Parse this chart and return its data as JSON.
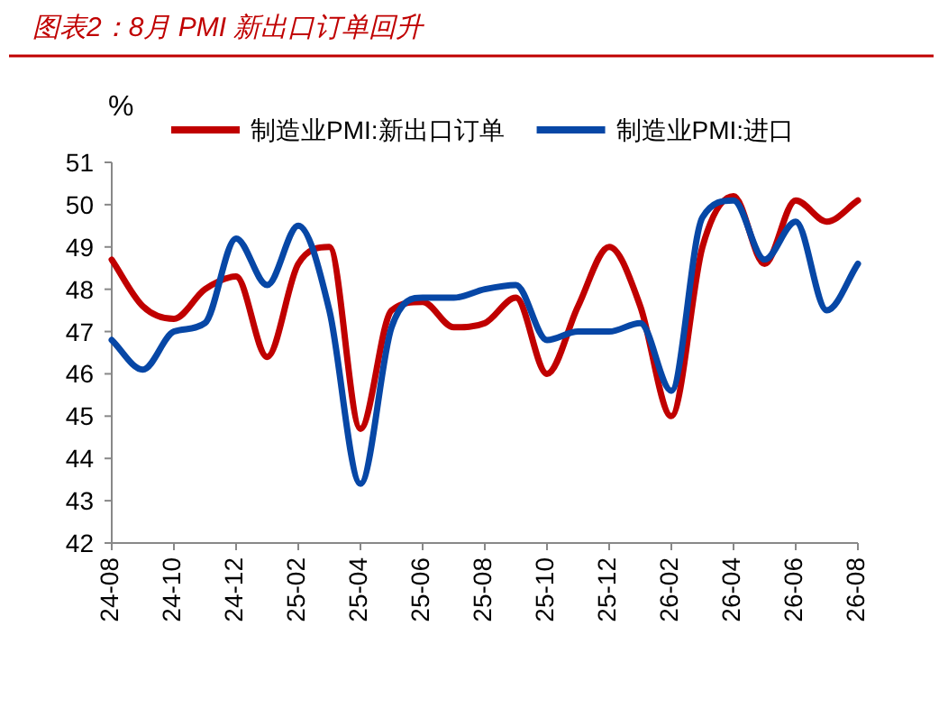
{
  "chart_data": {
    "type": "line",
    "title": "图表2：8月 PMI 新出口订单回升",
    "ylabel": "%",
    "categories": [
      "24-08",
      null,
      "24-10",
      null,
      "24-12",
      null,
      "25-02",
      null,
      "25-04",
      null,
      "25-06",
      null,
      "25-08",
      null,
      "25-10",
      null,
      "25-12",
      null,
      "26-02",
      null,
      "26-04",
      null,
      "26-06",
      null,
      "26-08"
    ],
    "series": [
      {
        "name": "制造业PMI:新出口订单",
        "color": "#c00000",
        "values": [
          48.7,
          47.6,
          47.3,
          48.0,
          48.3,
          46.4,
          48.6,
          49.0,
          44.7,
          47.5,
          47.7,
          47.1,
          47.2,
          47.8,
          46.0,
          47.6,
          49.0,
          47.6,
          45.0,
          49.0,
          50.2,
          48.6,
          50.1,
          49.6,
          50.1
        ]
      },
      {
        "name": "制造业PMI:进口",
        "color": "#0747a6",
        "values": [
          46.8,
          46.1,
          47.0,
          47.2,
          49.2,
          48.1,
          49.5,
          47.5,
          43.4,
          47.1,
          47.8,
          47.8,
          48.0,
          48.1,
          46.8,
          47.0,
          47.0,
          47.2,
          45.6,
          49.7,
          50.1,
          48.7,
          49.6,
          47.5,
          48.6
        ]
      }
    ],
    "ylim": [
      42,
      51
    ],
    "yticks": [
      42,
      43,
      44,
      45,
      46,
      47,
      48,
      49,
      50,
      51
    ],
    "legend": "top",
    "grid": false,
    "marker": "none",
    "line_style": "solid"
  }
}
